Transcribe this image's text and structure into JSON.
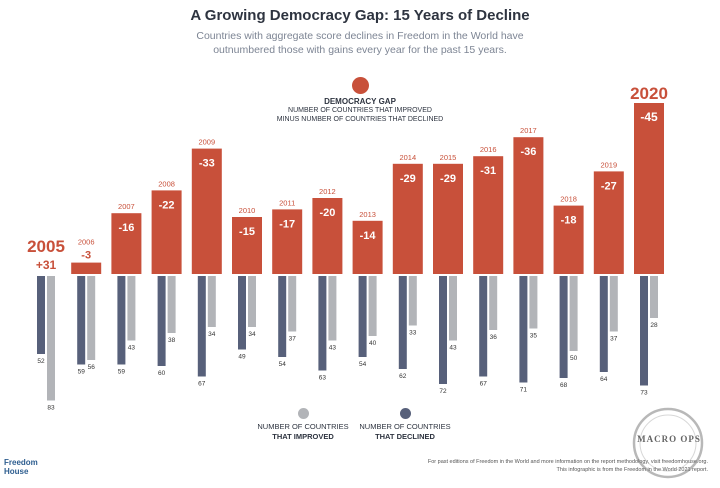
{
  "title": "A Growing Democracy Gap: 15 Years of Decline",
  "subtitle_line1": "Countries with aggregate score declines in Freedom in the World have",
  "subtitle_line2": "outnumbered those with gains every year for the past 15 years.",
  "legend_top": {
    "heading": "DEMOCRACY GAP",
    "line1": "NUMBER OF COUNTRIES THAT IMPROVED",
    "line2": "MINUS NUMBER OF COUNTRIES THAT DECLINED",
    "color": "#c8503a"
  },
  "legend_bottom": {
    "improved_line1": "NUMBER OF COUNTRIES",
    "improved_line2": "THAT IMPROVED",
    "declined_line1": "NUMBER OF COUNTRIES",
    "declined_line2": "THAT DECLINED",
    "improved_color": "#b2b4b8",
    "declined_color": "#57607a"
  },
  "footer": {
    "logo_line1": "Freedom",
    "logo_line2": "House",
    "note1": "For past editions of Freedom in the World and more information on the report methodology, visit freedomhouse.org.",
    "note2": "This infographic is from the Freedom in the World 2021 report."
  },
  "watermark": "MACRO OPS",
  "chart_data": {
    "type": "bar",
    "categories": [
      "2005",
      "2006",
      "2007",
      "2008",
      "2009",
      "2010",
      "2011",
      "2012",
      "2013",
      "2014",
      "2015",
      "2016",
      "2017",
      "2018",
      "2019",
      "2020"
    ],
    "series": [
      {
        "name": "DEMOCRACY GAP",
        "values": [
          31,
          -3,
          -16,
          -22,
          -33,
          -15,
          -17,
          -20,
          -14,
          -29,
          -29,
          -31,
          -36,
          -18,
          -27,
          -45
        ],
        "color": "#c8503a"
      },
      {
        "name": "NUMBER OF COUNTRIES THAT IMPROVED",
        "values": [
          83,
          56,
          43,
          38,
          34,
          34,
          37,
          43,
          40,
          33,
          43,
          36,
          35,
          50,
          37,
          28
        ],
        "color": "#b2b4b8"
      },
      {
        "name": "NUMBER OF COUNTRIES THAT DECLINED",
        "values": [
          52,
          59,
          59,
          60,
          67,
          49,
          54,
          63,
          54,
          62,
          72,
          67,
          71,
          68,
          64,
          73
        ],
        "color": "#57607a"
      }
    ],
    "gap_labels": [
      "+31",
      "-3",
      "-16",
      "-22",
      "-33",
      "-15",
      "-17",
      "-20",
      "-14",
      "-29",
      "-29",
      "-31",
      "-36",
      "-18",
      "-27",
      "-45"
    ],
    "highlight_years": [
      "2005",
      "2020"
    ]
  }
}
